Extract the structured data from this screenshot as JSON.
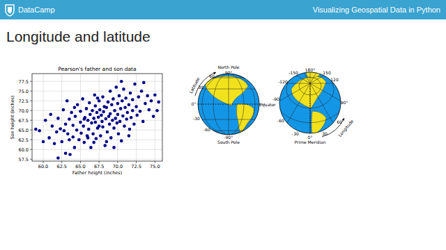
{
  "header": {
    "brand": "DataCamp",
    "course": "Visualizing Geospatial Data in Python"
  },
  "slide_title": "Longitude and latitude",
  "chart_data": {
    "type": "scatter",
    "title": "Pearson's father and son data",
    "x_label": "Father height (inches)",
    "y_label": "Son height (inches)",
    "color": "#00008b",
    "marker": "circle",
    "grid": true,
    "xlim": [
      58.5,
      76
    ],
    "ylim": [
      57,
      79.5
    ],
    "xticks": [
      {
        "value": 60,
        "label": "60.0"
      },
      {
        "value": 62.5,
        "label": "62.5"
      },
      {
        "value": 65,
        "label": "65.0"
      },
      {
        "value": 67.5,
        "label": "67.5"
      },
      {
        "value": 70,
        "label": "70.0"
      },
      {
        "value": 72.5,
        "label": "72.5"
      },
      {
        "value": 75,
        "label": "75.0"
      }
    ],
    "yticks": [
      {
        "value": 57.5,
        "label": "57.5"
      },
      {
        "value": 60,
        "label": "60.0"
      },
      {
        "value": 62.5,
        "label": "62.5"
      },
      {
        "value": 65,
        "label": "65.0"
      },
      {
        "value": 67.5,
        "label": "67.5"
      },
      {
        "value": 70,
        "label": "70.0"
      },
      {
        "value": 72.5,
        "label": "72.5"
      },
      {
        "value": 75,
        "label": "75.0"
      },
      {
        "value": 77.5,
        "label": "77.5"
      }
    ],
    "x": [
      59.0,
      59.5,
      60.3,
      60.8,
      61.2,
      61.5,
      61.8,
      62.0,
      62.3,
      62.5,
      62.7,
      63.0,
      63.0,
      63.3,
      63.5,
      63.6,
      63.8,
      64.0,
      64.0,
      64.2,
      64.3,
      64.5,
      64.6,
      64.8,
      65.0,
      65.0,
      65.1,
      65.3,
      65.4,
      65.5,
      65.6,
      65.8,
      65.9,
      66.0,
      66.1,
      66.2,
      66.3,
      66.4,
      66.5,
      66.6,
      66.7,
      66.8,
      66.9,
      67.0,
      67.0,
      67.1,
      67.2,
      67.3,
      67.4,
      67.5,
      67.5,
      67.6,
      67.7,
      67.8,
      67.9,
      68.0,
      68.0,
      68.1,
      68.2,
      68.3,
      68.4,
      68.5,
      68.6,
      68.7,
      68.8,
      68.9,
      69.0,
      69.0,
      69.1,
      69.2,
      69.3,
      69.4,
      69.5,
      69.6,
      69.7,
      69.8,
      69.9,
      70.0,
      70.0,
      70.1,
      70.2,
      70.3,
      70.4,
      70.5,
      70.6,
      70.7,
      70.8,
      70.9,
      71.0,
      71.1,
      71.2,
      71.3,
      71.5,
      71.6,
      71.7,
      71.8,
      72.0,
      72.0,
      72.2,
      72.3,
      72.5,
      72.6,
      72.8,
      73.0,
      73.2,
      73.4,
      73.5,
      73.7,
      74.0,
      74.2,
      74.5,
      74.8,
      75.0,
      75.3,
      75.5,
      62.8,
      63.5,
      64.2,
      65.5,
      66.0,
      66.8,
      67.3,
      68.5,
      69.5,
      70.5,
      71.5,
      61.0,
      63.2,
      60.0,
      62.0
    ],
    "values": [
      65.2,
      64.8,
      67.5,
      63.0,
      66.0,
      61.5,
      64.5,
      68.0,
      65.3,
      62.0,
      70.2,
      66.5,
      59.0,
      64.0,
      67.8,
      58.7,
      69.5,
      63.2,
      66.2,
      60.5,
      68.5,
      65.0,
      71.5,
      62.5,
      67.0,
      69.8,
      64.2,
      73.0,
      66.0,
      61.8,
      68.2,
      70.5,
      63.5,
      67.5,
      65.2,
      72.0,
      69.0,
      60.5,
      66.8,
      70.0,
      64.0,
      68.0,
      74.0,
      67.0,
      71.2,
      62.8,
      69.5,
      65.5,
      68.3,
      72.5,
      66.0,
      70.2,
      63.5,
      68.8,
      67.2,
      73.5,
      65.8,
      69.7,
      71.0,
      61.0,
      67.9,
      70.8,
      64.5,
      72.2,
      68.5,
      66.5,
      75.0,
      69.2,
      63.0,
      71.5,
      67.5,
      73.0,
      65.5,
      70.0,
      68.0,
      76.0,
      66.8,
      71.8,
      69.0,
      64.0,
      73.8,
      67.2,
      70.5,
      62.2,
      72.5,
      68.6,
      75.5,
      66.0,
      70.8,
      73.2,
      67.8,
      69.5,
      71.5,
      65.2,
      74.5,
      68.2,
      72.8,
      70.0,
      66.5,
      76.8,
      71.0,
      68.8,
      73.5,
      69.8,
      75.0,
      67.2,
      77.2,
      71.8,
      73.8,
      70.2,
      72.5,
      68.5,
      74.0,
      70.0,
      72.2,
      64.8,
      62.5,
      70.8,
      67.8,
      63.0,
      61.8,
      73.2,
      62.0,
      60.5,
      77.5,
      63.5,
      69.0,
      72.5,
      62.0,
      57.8
    ]
  },
  "globes": [
    {
      "labels": [
        "North Pole",
        "90°",
        "60",
        "30",
        "0°",
        "-30",
        "-60",
        "-90°",
        "South Pole",
        "Latitude",
        "Equator"
      ]
    },
    {
      "labels": [
        "180°",
        "150",
        "-150",
        "120",
        "-120",
        "90°",
        "-90",
        "60",
        "-60",
        "30",
        "-30",
        "0°",
        "Prime Meridian",
        "Longitude"
      ]
    }
  ]
}
